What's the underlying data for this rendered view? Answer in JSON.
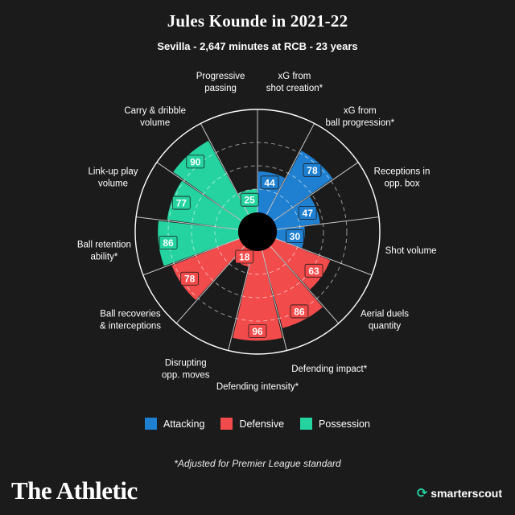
{
  "header": {
    "title": "Jules Kounde in 2021-22",
    "subtitle": "Sevilla - 2,647 minutes at RCB - 23 years"
  },
  "colors": {
    "background": "#1b1b1b",
    "attacking": "#1f7fd0",
    "defensive": "#f24b4b",
    "possession": "#25d3a0",
    "hub": "#000000",
    "grid": "#ffffff"
  },
  "chart_data": {
    "type": "polar-bar",
    "title": "Jules Kounde in 2021-22",
    "subtitle": "Sevilla - 2,647 minutes at RCB - 23 years",
    "rlim": [
      0,
      100
    ],
    "grid": true,
    "categories": [
      [
        "xG from",
        "shot creation*"
      ],
      [
        "xG from",
        "ball progression*"
      ],
      [
        "Receptions in",
        "opp. box"
      ],
      [
        "Shot volume"
      ],
      [
        "Aerial duels",
        "quantity"
      ],
      [
        "Defending impact*"
      ],
      [
        "Defending intensity*"
      ],
      [
        "Disrupting",
        "opp. moves"
      ],
      [
        "Ball recoveries",
        "& interceptions"
      ],
      [
        "Ball retention",
        "ability*"
      ],
      [
        "Link-up play",
        "volume"
      ],
      [
        "Carry & dribble",
        "volume"
      ],
      [
        "Progressive",
        "passing"
      ]
    ],
    "values": [
      44,
      78,
      47,
      30,
      63,
      86,
      96,
      18,
      78,
      86,
      77,
      90,
      25
    ],
    "groups": [
      "Attacking",
      "Attacking",
      "Attacking",
      "Attacking",
      "Defensive",
      "Defensive",
      "Defensive",
      "Defensive",
      "Defensive",
      "Possession",
      "Possession",
      "Possession",
      "Possession"
    ],
    "legend": [
      "Attacking",
      "Defensive",
      "Possession"
    ],
    "legend_position": "bottom"
  },
  "legend": [
    {
      "label": "Attacking",
      "color": "#1f7fd0"
    },
    {
      "label": "Defensive",
      "color": "#f24b4b"
    },
    {
      "label": "Possession",
      "color": "#25d3a0"
    }
  ],
  "footnote": "*Adjusted for Premier League standard",
  "branding": {
    "publisher": "The Athletic",
    "partner": "smarterscout"
  }
}
